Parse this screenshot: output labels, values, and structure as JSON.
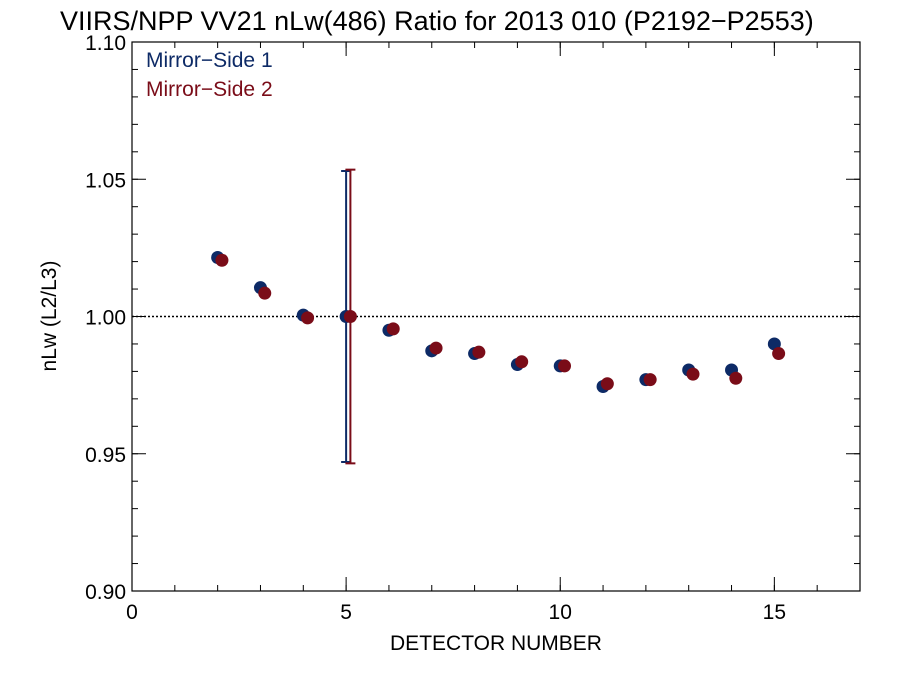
{
  "chart_data": {
    "type": "scatter",
    "title": "VIIRS/NPP VV21 nLw(486) Ratio for 2013 010 (P2192−P2553)",
    "xlabel": "DETECTOR NUMBER",
    "ylabel": "nLw (L2/L3)",
    "xlim": [
      0,
      17
    ],
    "ylim": [
      0.9,
      1.1
    ],
    "x_ticks": [
      0,
      5,
      10,
      15
    ],
    "x_tick_labels": [
      "0",
      "5",
      "10",
      "15"
    ],
    "y_ticks": [
      0.9,
      0.95,
      1.0,
      1.05,
      1.1
    ],
    "y_tick_labels": [
      "0.90",
      "0.95",
      "1.00",
      "1.05",
      "1.10"
    ],
    "reference_line": 1.0,
    "grid": false,
    "legend": "top-left",
    "series": [
      {
        "name": "Mirror−Side 1",
        "color": "#0d2a66",
        "x": [
          2,
          3,
          4,
          5,
          6,
          7,
          8,
          9,
          10,
          11,
          12,
          13,
          14,
          15
        ],
        "y": [
          1.0215,
          1.0105,
          1.0005,
          1.0,
          0.995,
          0.9875,
          0.9865,
          0.9825,
          0.982,
          0.9745,
          0.977,
          0.9805,
          0.9805,
          0.99
        ],
        "error_bar": {
          "x": 5,
          "low": 0.947,
          "high": 1.053
        }
      },
      {
        "name": "Mirror−Side 2",
        "color": "#7a0c18",
        "x": [
          2.1,
          3.1,
          4.1,
          5.1,
          6.1,
          7.1,
          8.1,
          9.1,
          10.1,
          11.1,
          12.1,
          13.1,
          14.1,
          15.1
        ],
        "y": [
          1.0205,
          1.0085,
          0.9995,
          1.0,
          0.9955,
          0.9885,
          0.987,
          0.9835,
          0.982,
          0.9755,
          0.977,
          0.979,
          0.9775,
          0.9865
        ],
        "error_bar": {
          "x": 5.1,
          "low": 0.9465,
          "high": 1.0535
        }
      }
    ]
  }
}
